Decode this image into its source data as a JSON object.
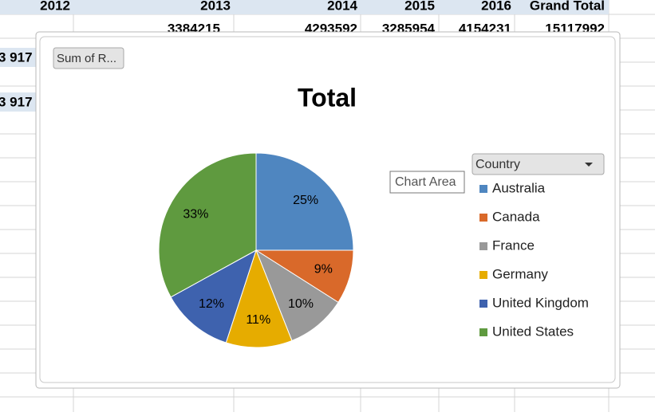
{
  "sheet": {
    "header": [
      "2012",
      "2013",
      "2014",
      "2015",
      "2016",
      "Grand Total"
    ],
    "totals": [
      3384215,
      4293592,
      3285954,
      4154231,
      15117992
    ],
    "left_values": [
      "3 917",
      "3 917"
    ]
  },
  "ui": {
    "field_button": "Sum of R...",
    "tooltip": "Chart Area"
  },
  "chart_data": {
    "type": "pie",
    "title": "Total",
    "legend_title": "Country",
    "categories": [
      "Australia",
      "Canada",
      "France",
      "Germany",
      "United Kingdom",
      "United States"
    ],
    "values": [
      25,
      9,
      10,
      11,
      12,
      33
    ],
    "value_labels": [
      "25%",
      "9%",
      "10%",
      "11%",
      "12%",
      "33%"
    ],
    "colors": [
      "#4f86c0",
      "#d9692a",
      "#999999",
      "#e6ac00",
      "#3e62ae",
      "#5f9a3f"
    ]
  }
}
